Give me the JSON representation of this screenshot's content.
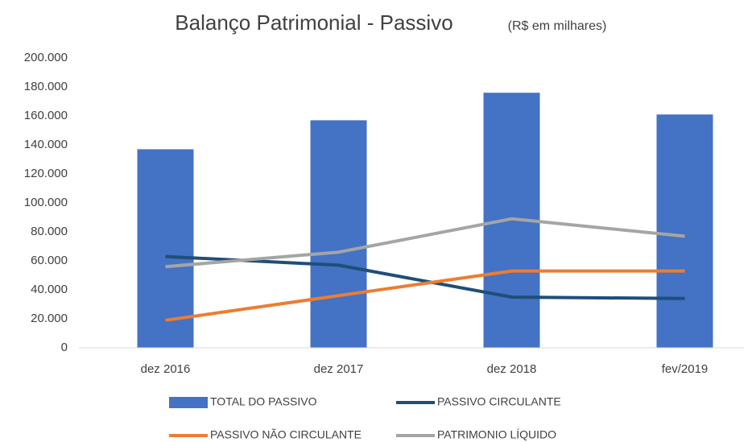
{
  "chart_data": {
    "type": "bar",
    "title": "Balanço Patrimonial  - Passivo",
    "subtitle": "(R$  em milhares)",
    "categories": [
      "dez 2016",
      "dez 2017",
      "dez 2018",
      "fev/2019"
    ],
    "series": [
      {
        "name": "TOTAL DO PASSIVO",
        "type": "bar",
        "color": "#4472c4",
        "values": [
          137000,
          157000,
          176000,
          161000
        ]
      },
      {
        "name": "PASSIVO CIRCULANTE",
        "type": "line",
        "color": "#1f4e79",
        "values": [
          63000,
          57000,
          35000,
          34000
        ]
      },
      {
        "name": "PASSIVO NÃO CIRCULANTE",
        "type": "line",
        "color": "#ed7d31",
        "values": [
          19000,
          36000,
          53000,
          53000
        ]
      },
      {
        "name": "PATRIMONIO LÍQUIDO",
        "type": "line",
        "color": "#a5a5a5",
        "values": [
          56000,
          66000,
          89000,
          77000
        ]
      }
    ],
    "ylim": [
      0,
      200000
    ],
    "yticks": [
      0,
      {
        "value": 20000,
        "label": "20.000"
      },
      {
        "value": 40000,
        "label": "40.000"
      },
      {
        "value": 60000,
        "label": "60.000"
      },
      {
        "value": 80000,
        "label": "80.000"
      },
      {
        "value": 100000,
        "label": "100.000"
      },
      {
        "value": 120000,
        "label": "120.000"
      },
      {
        "value": 140000,
        "label": "140.000"
      },
      {
        "value": 160000,
        "label": "160.000"
      },
      {
        "value": 180000,
        "label": "180.000"
      },
      {
        "value": 200000,
        "label": "200.000"
      }
    ],
    "grid": false,
    "legend": "bottom"
  }
}
